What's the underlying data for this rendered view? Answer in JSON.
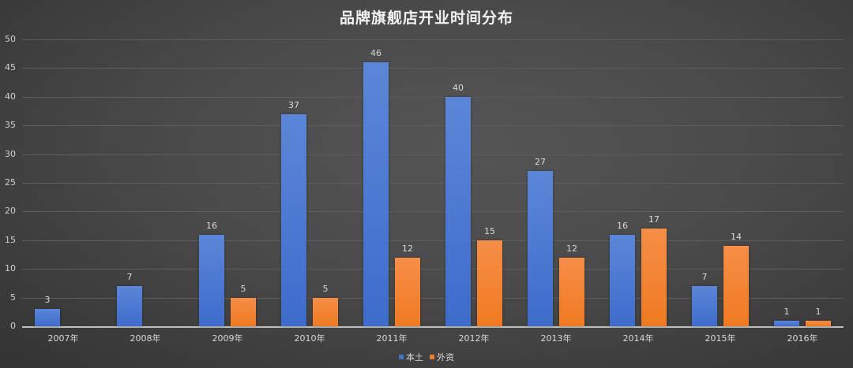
{
  "chart_data": {
    "type": "bar",
    "title": "品牌旗舰店开业时间分布",
    "xlabel": "",
    "ylabel": "",
    "ylim": [
      0,
      50
    ],
    "yticks": [
      0,
      5,
      10,
      15,
      20,
      25,
      30,
      35,
      40,
      45,
      50
    ],
    "grid": true,
    "legend_position": "bottom",
    "categories": [
      "2007年",
      "2008年",
      "2009年",
      "2010年",
      "2011年",
      "2012年",
      "2013年",
      "2014年",
      "2015年",
      "2016年"
    ],
    "series": [
      {
        "name": "本土",
        "color": "#4472c4",
        "values": [
          3,
          7,
          16,
          37,
          46,
          40,
          27,
          16,
          7,
          1
        ]
      },
      {
        "name": "外资",
        "color": "#ed7d31",
        "values": [
          null,
          null,
          5,
          5,
          12,
          15,
          12,
          17,
          14,
          1
        ]
      }
    ]
  }
}
